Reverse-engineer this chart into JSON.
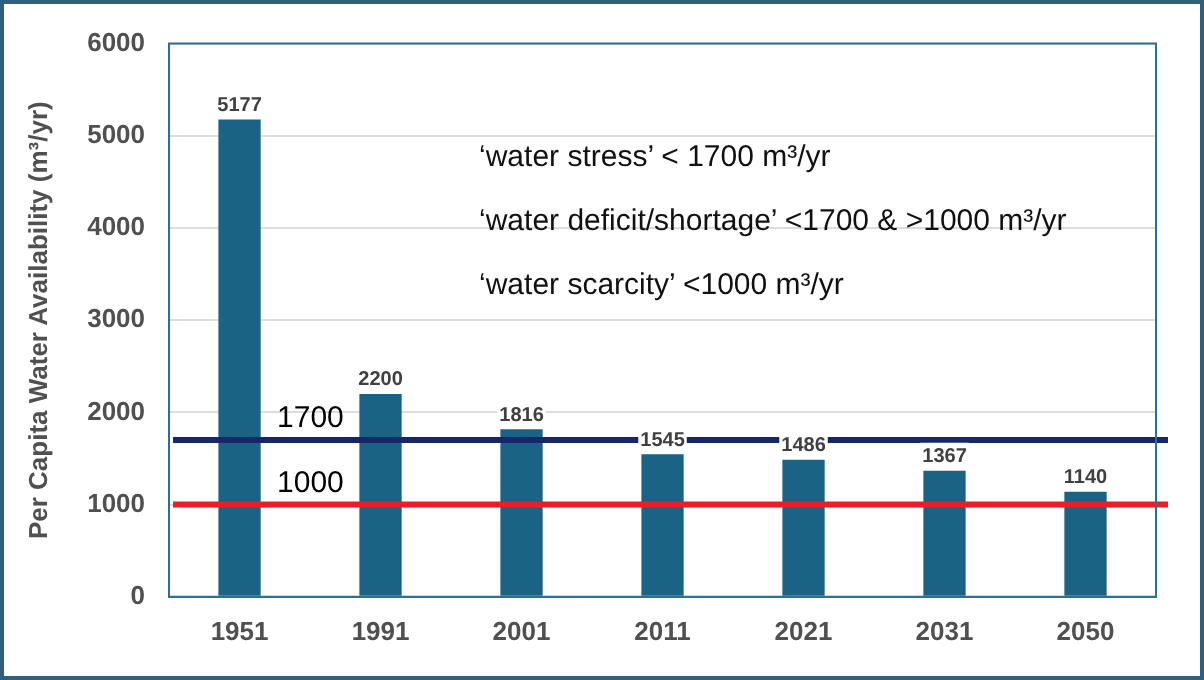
{
  "chart_data": {
    "type": "bar",
    "ylabel": "Per Capita Water Availability (m³/yr)",
    "categories": [
      "1951",
      "1991",
      "2001",
      "2011",
      "2021",
      "2031",
      "2050"
    ],
    "values": [
      5177,
      2200,
      1816,
      1545,
      1486,
      1367,
      1140
    ],
    "color": "#1b6385",
    "ylim": [
      0,
      6000
    ],
    "yticks": [
      0,
      1000,
      2000,
      3000,
      4000,
      5000,
      6000
    ],
    "grid": "y",
    "data_labels": true,
    "legend": false,
    "ref_lines": [
      {
        "axis": "y",
        "value": 1700,
        "label": "1700",
        "color": "#17266b"
      },
      {
        "axis": "y",
        "value": 1000,
        "label": "1000",
        "color": "#ee1c24"
      }
    ],
    "annotations": [
      "‘water stress’ < 1700 m³/yr",
      "‘water deficit/shortage’ <1700 & >1000 m³/yr",
      "‘water scarcity’ <1000 m³/yr"
    ]
  }
}
